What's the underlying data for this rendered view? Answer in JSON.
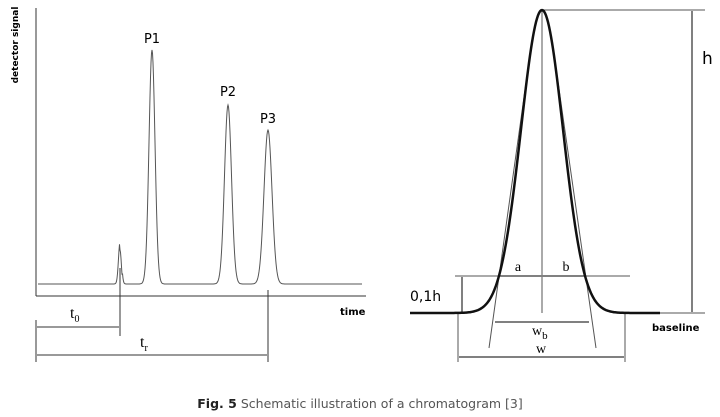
{
  "left_panel": {
    "y_axis_label": "detector signal",
    "x_axis_label": "time",
    "peaks": [
      "P1",
      "P2",
      "P3"
    ],
    "t0": {
      "base": "t",
      "sub": "0"
    },
    "tr": {
      "base": "t",
      "sub": "r"
    }
  },
  "right_panel": {
    "height_label": "h",
    "tenth_height_label": "0,1h",
    "a_label": "a",
    "b_label": "b",
    "wb": {
      "base": "w",
      "sub": "b"
    },
    "w_label": "w",
    "baseline_label": "baseline"
  },
  "caption": {
    "number": "Fig. 5",
    "text": "Schematic illustration of a chromatogram [3]"
  }
}
